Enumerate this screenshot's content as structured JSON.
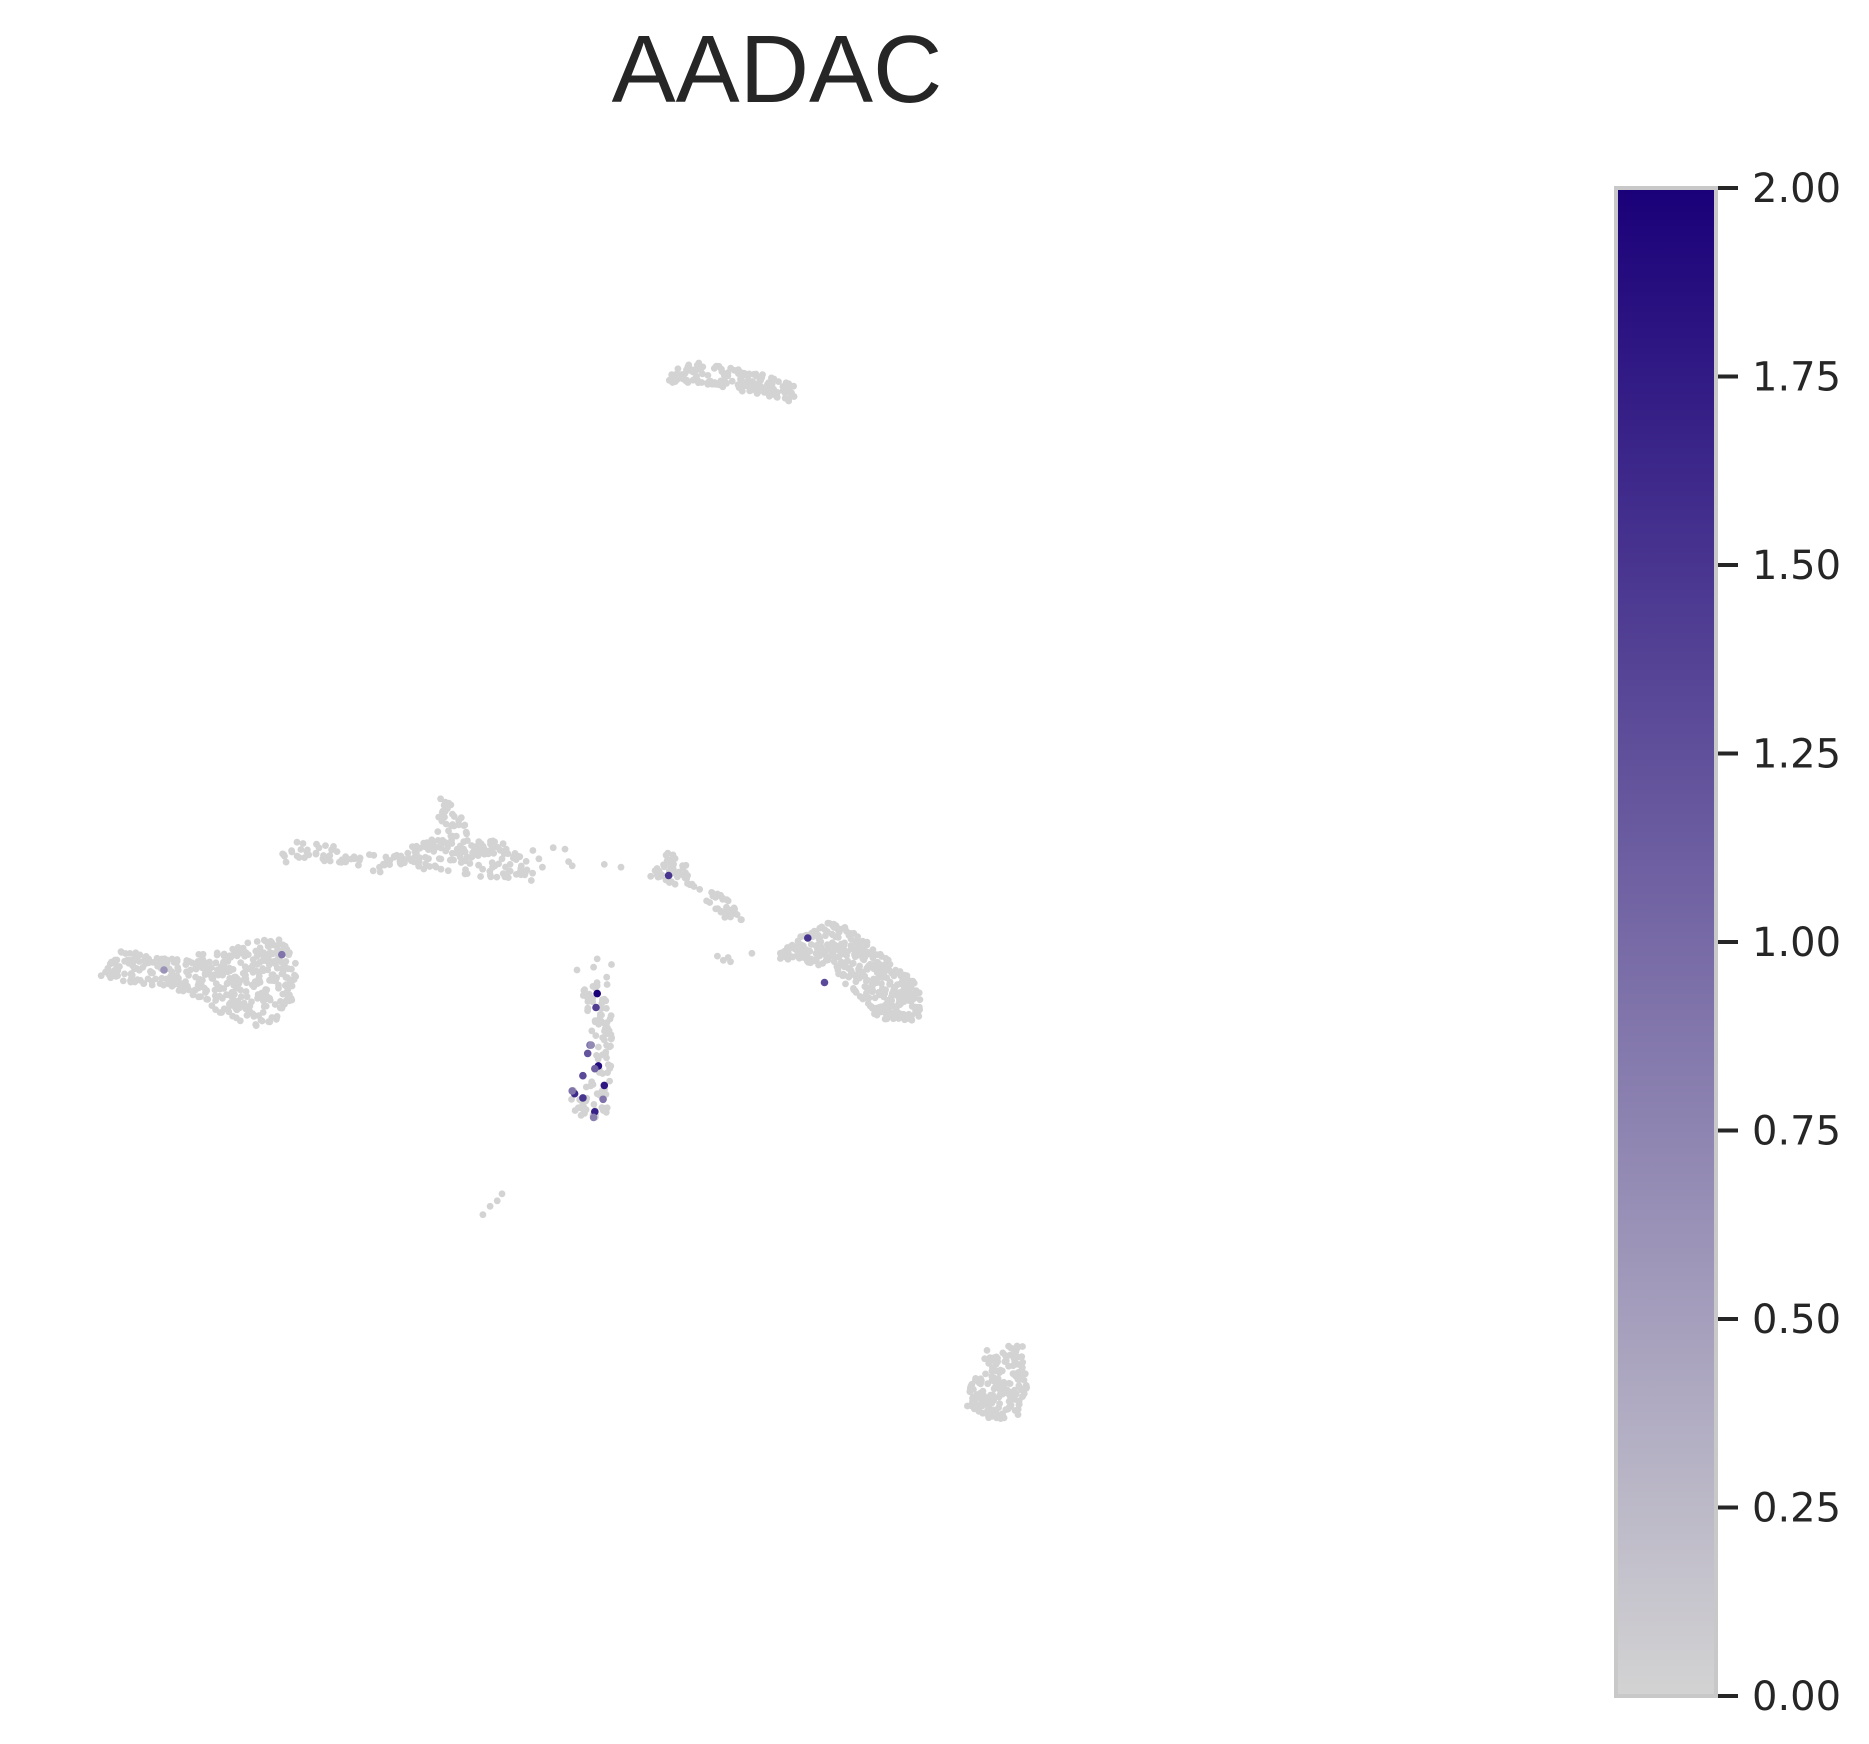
{
  "chart_data": {
    "type": "scatter",
    "title": "AADAC",
    "xlabel": "",
    "ylabel": "",
    "grid": false,
    "axes_visible": false,
    "xlim": [
      0,
      100
    ],
    "ylim": [
      0,
      100
    ],
    "colorbar": {
      "vmin": 0,
      "vmax": 2,
      "ticks": [
        "0.00",
        "0.25",
        "0.50",
        "0.75",
        "1.00",
        "1.25",
        "1.50",
        "1.75",
        "2.00"
      ],
      "color_low": "#d3d3d3",
      "color_high": "#1a0079",
      "border_color": "#c8c8c8"
    },
    "point_default_color": "#d3d3d3",
    "clusters": [
      {
        "poly": [
          [
            48,
            91
          ],
          [
            50,
            92
          ],
          [
            53,
            91.6
          ],
          [
            56,
            91.1
          ],
          [
            58,
            90.7
          ],
          [
            59.2,
            89.9
          ],
          [
            58.5,
            89.1
          ],
          [
            55,
            89.7
          ],
          [
            52,
            90.3
          ],
          [
            49,
            90.4
          ],
          [
            47.2,
            90.3
          ]
        ],
        "n": 160
      },
      {
        "poly": [
          [
            15.5,
            56.8
          ],
          [
            17,
            57.5
          ],
          [
            21,
            57
          ],
          [
            25,
            56.4
          ],
          [
            28.5,
            57.8
          ],
          [
            29,
            60.7
          ],
          [
            30.5,
            60
          ],
          [
            31.7,
            57.8
          ],
          [
            34,
            57.5
          ],
          [
            36.5,
            56
          ],
          [
            37,
            54.6
          ],
          [
            33,
            54.8
          ],
          [
            30,
            55.3
          ],
          [
            27,
            55.5
          ],
          [
            24,
            55.2
          ],
          [
            20,
            56
          ],
          [
            17,
            55.8
          ],
          [
            15.5,
            56
          ]
        ],
        "n": 230
      },
      {
        "poly": [
          [
            46.5,
            55
          ],
          [
            48,
            56.8
          ],
          [
            49.5,
            56
          ],
          [
            51,
            53.5
          ],
          [
            53,
            51.8
          ],
          [
            54.5,
            51.8
          ],
          [
            53,
            53.5
          ],
          [
            51,
            54.2
          ],
          [
            49,
            54.2
          ]
        ],
        "n": 80
      },
      {
        "poly": [
          [
            0.3,
            47.8
          ],
          [
            2,
            49.7
          ],
          [
            6,
            49
          ],
          [
            10,
            49.5
          ],
          [
            13,
            50.3
          ],
          [
            16,
            50.6
          ],
          [
            17,
            48.6
          ],
          [
            16.6,
            46
          ],
          [
            15,
            44.4
          ],
          [
            13,
            44
          ],
          [
            11,
            44.8
          ],
          [
            9,
            46
          ],
          [
            6,
            47
          ],
          [
            3,
            47.2
          ]
        ],
        "n": 420
      },
      {
        "poly": [
          [
            40.5,
            46.5
          ],
          [
            43,
            47.8
          ],
          [
            43.5,
            44
          ],
          [
            43.2,
            38.5
          ],
          [
            42.8,
            37.4
          ],
          [
            40.5,
            37.5
          ],
          [
            39.8,
            39.3
          ],
          [
            41.7,
            40.5
          ],
          [
            42,
            43
          ]
        ],
        "n": 100
      },
      {
        "poly": [
          [
            56,
            48.5
          ],
          [
            59,
            50.5
          ],
          [
            62,
            51.8
          ],
          [
            64.5,
            50.5
          ],
          [
            66.5,
            49.2
          ],
          [
            69.5,
            46.8
          ],
          [
            69.3,
            44.5
          ],
          [
            66,
            44.5
          ],
          [
            64,
            46.5
          ],
          [
            61.5,
            48.3
          ],
          [
            58.5,
            49
          ]
        ],
        "n": 390
      },
      {
        "poly": [
          [
            74.2,
            20.8
          ],
          [
            76.2,
            21.2
          ],
          [
            78,
            21.2
          ],
          [
            78.4,
            18.2
          ],
          [
            77.8,
            16.2
          ],
          [
            75.5,
            15.8
          ],
          [
            73.2,
            16.7
          ],
          [
            73.5,
            18.5
          ],
          [
            75,
            19.5
          ]
        ],
        "n": 190
      }
    ],
    "scattered_points": [
      [
        42.2,
        49
      ],
      [
        41.9,
        48.4
      ],
      [
        43.4,
        48.6
      ],
      [
        52.3,
        49.2
      ],
      [
        52.8,
        48.9
      ],
      [
        53.2,
        49.1
      ],
      [
        53.4,
        48.8
      ],
      [
        55.2,
        49.4
      ],
      [
        38.5,
        57
      ],
      [
        39.5,
        56.9
      ],
      [
        39.8,
        56
      ],
      [
        40.1,
        55.7
      ],
      [
        36.8,
        56.8
      ],
      [
        37.3,
        56.2
      ],
      [
        37.6,
        55.6
      ],
      [
        33.5,
        56.6
      ],
      [
        34.2,
        56.2
      ],
      [
        36.3,
        55.4
      ],
      [
        42.8,
        55.8
      ],
      [
        44.2,
        55.6
      ],
      [
        40.5,
        48.2
      ],
      [
        42.8,
        46.1
      ],
      [
        33.2,
        31.2
      ],
      [
        32.6,
        30.6
      ],
      [
        33.8,
        31.6
      ],
      [
        34.2,
        32.1
      ]
    ],
    "expressed_points": [
      {
        "x": 42.2,
        "y": 46.5,
        "value": 2.0
      },
      {
        "x": 42.3,
        "y": 41.3,
        "value": 1.9
      },
      {
        "x": 42.8,
        "y": 39.9,
        "value": 1.8
      },
      {
        "x": 42.1,
        "y": 45.5,
        "value": 1.4
      },
      {
        "x": 41.4,
        "y": 42.2,
        "value": 1.2
      },
      {
        "x": 41.6,
        "y": 42.8,
        "value": 1.0
      },
      {
        "x": 41.0,
        "y": 40.6,
        "value": 1.3
      },
      {
        "x": 40.3,
        "y": 39.3,
        "value": 1.6
      },
      {
        "x": 41.0,
        "y": 39.0,
        "value": 1.5
      },
      {
        "x": 42.0,
        "y": 38.0,
        "value": 1.7
      },
      {
        "x": 42.0,
        "y": 41.1,
        "value": 1.1
      },
      {
        "x": 40.1,
        "y": 39.5,
        "value": 0.9
      },
      {
        "x": 41.9,
        "y": 37.6,
        "value": 0.8
      },
      {
        "x": 41.7,
        "y": 42.8,
        "value": 0.7
      },
      {
        "x": 42.7,
        "y": 38.9,
        "value": 0.9
      },
      {
        "x": 48.2,
        "y": 55.0,
        "value": 1.5
      },
      {
        "x": 59.9,
        "y": 50.5,
        "value": 1.5
      },
      {
        "x": 61.3,
        "y": 47.3,
        "value": 1.3
      },
      {
        "x": 15.7,
        "y": 49.3,
        "value": 0.9
      },
      {
        "x": 5.8,
        "y": 48.2,
        "value": 0.6
      }
    ]
  }
}
